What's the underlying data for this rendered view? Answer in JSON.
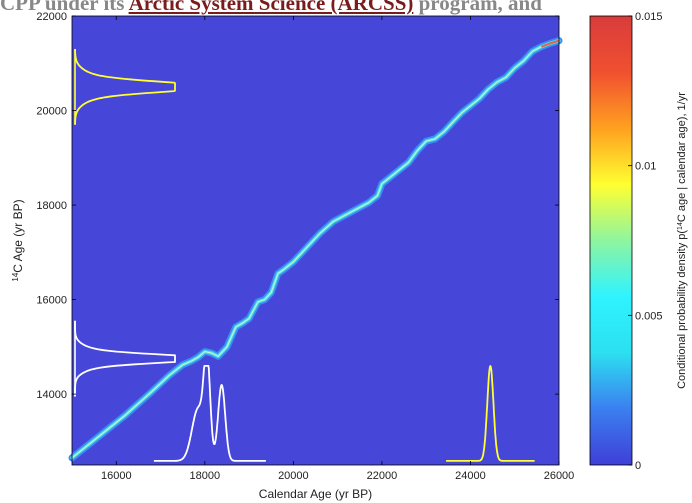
{
  "header_fragment": {
    "before": "CPP under its ",
    "link": "Arctic System Science (ARCSS)",
    "after": " program, and"
  },
  "chart_data": {
    "type": "heatmap",
    "title": "",
    "xlabel": "Calendar Age (yr BP)",
    "ylabel_prefix": "14",
    "ylabel": "C Age (yr BP)",
    "xlim": [
      15000,
      26000
    ],
    "ylim": [
      12500,
      22000
    ],
    "xticks": [
      "16000",
      "18000",
      "20000",
      "22000",
      "24000",
      "26000"
    ],
    "yticks": [
      "14000",
      "16000",
      "18000",
      "20000",
      "22000"
    ],
    "background_color": "#4646d9",
    "calibration_curve": [
      [
        15000,
        12650
      ],
      [
        15600,
        13100
      ],
      [
        16200,
        13550
      ],
      [
        16800,
        14050
      ],
      [
        17200,
        14400
      ],
      [
        17500,
        14620
      ],
      [
        17700,
        14700
      ],
      [
        17850,
        14780
      ],
      [
        18000,
        14900
      ],
      [
        18150,
        14870
      ],
      [
        18300,
        14800
      ],
      [
        18500,
        15000
      ],
      [
        18700,
        15420
      ],
      [
        18850,
        15500
      ],
      [
        19000,
        15600
      ],
      [
        19200,
        15950
      ],
      [
        19350,
        16000
      ],
      [
        19500,
        16150
      ],
      [
        19650,
        16550
      ],
      [
        19800,
        16650
      ],
      [
        20000,
        16800
      ],
      [
        20300,
        17100
      ],
      [
        20600,
        17400
      ],
      [
        20900,
        17650
      ],
      [
        21300,
        17850
      ],
      [
        21700,
        18050
      ],
      [
        21900,
        18200
      ],
      [
        22000,
        18450
      ],
      [
        22200,
        18600
      ],
      [
        22400,
        18750
      ],
      [
        22600,
        18900
      ],
      [
        22800,
        19150
      ],
      [
        23000,
        19350
      ],
      [
        23200,
        19400
      ],
      [
        23400,
        19550
      ],
      [
        23600,
        19750
      ],
      [
        23800,
        19950
      ],
      [
        24000,
        20100
      ],
      [
        24200,
        20250
      ],
      [
        24400,
        20450
      ],
      [
        24600,
        20600
      ],
      [
        24800,
        20700
      ],
      [
        25000,
        20900
      ],
      [
        25200,
        21050
      ],
      [
        25400,
        21250
      ],
      [
        25600,
        21350
      ],
      [
        25800,
        21420
      ],
      [
        26000,
        21480
      ]
    ],
    "colorbar": {
      "label": "Conditional probability density p(14C age | calendar age), 1/yr",
      "range": [
        0,
        0.015
      ],
      "ticks": [
        "0",
        "0.005",
        "0.01",
        "0.015"
      ],
      "colors": [
        "#3f3fd8",
        "#3b7ff0",
        "#2ce0f0",
        "#2ff3ff",
        "#8ff5a0",
        "#ffff30",
        "#ffa020",
        "#f05030",
        "#d93b3b"
      ]
    },
    "density_curves": [
      {
        "color": "#ffff33",
        "axis": "y",
        "center": 20500,
        "sd": 100,
        "baseline": 15000
      },
      {
        "color": "#ffffff",
        "axis": "y",
        "center": 14750,
        "sd": 80,
        "baseline": 15000
      },
      {
        "color": "#ffffff",
        "axis": "x",
        "peaks": [
          [
            17850,
            140,
            0.55
          ],
          [
            18050,
            70,
            1.0
          ],
          [
            18380,
            80,
            0.8
          ]
        ],
        "baseline": 12650
      },
      {
        "color": "#ffff33",
        "axis": "x",
        "peaks": [
          [
            24450,
            70,
            1.0
          ]
        ],
        "baseline": 12650
      }
    ]
  }
}
